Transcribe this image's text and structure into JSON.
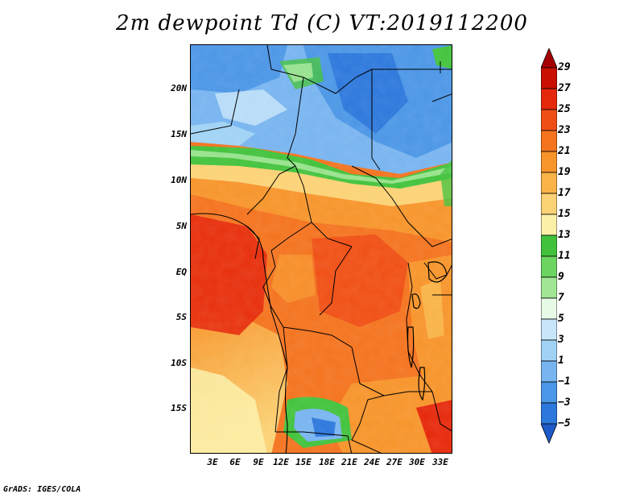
{
  "title": "2m dewpoint Td (C) VT:2019112200",
  "credit": "GrADS: IGES/COLA",
  "map": {
    "lat_ticks": [
      "20N",
      "15N",
      "10N",
      "5N",
      "EQ",
      "5S",
      "10S",
      "15S"
    ],
    "lon_ticks": [
      "3E",
      "6E",
      "9E",
      "12E",
      "15E",
      "18E",
      "21E",
      "24E",
      "27E",
      "30E",
      "33E"
    ]
  },
  "colorbar": {
    "labels": [
      "29",
      "27",
      "25",
      "23",
      "21",
      "19",
      "17",
      "15",
      "13",
      "11",
      "9",
      "7",
      "5",
      "3",
      "1",
      "−1",
      "−3",
      "−5"
    ],
    "colors": [
      "#a50000",
      "#c80f00",
      "#e6280a",
      "#f04f14",
      "#f4731e",
      "#f7942a",
      "#f9b346",
      "#fbd275",
      "#fcf0a8",
      "#42c23c",
      "#6cd460",
      "#a0e694",
      "#e6fae6",
      "#c8e6fa",
      "#a0d2f5",
      "#78b4f0",
      "#4b96e6",
      "#2d78dc",
      "#1e5ac8"
    ]
  }
}
